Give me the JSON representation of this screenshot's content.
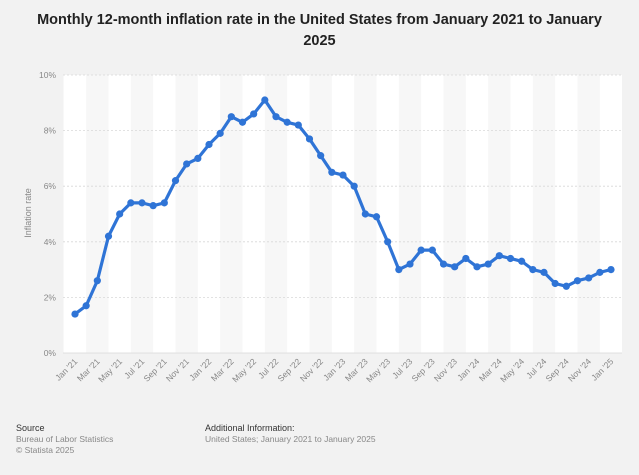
{
  "title": "Monthly 12-month inflation rate in the United States from January 2021 to January 2025",
  "chart_data": {
    "type": "line",
    "title": "Monthly 12-month inflation rate in the United States from January 2021 to January 2025",
    "xlabel": "",
    "ylabel": "Inflation rate",
    "ylim": [
      0,
      10
    ],
    "yticks": [
      "0%",
      "2%",
      "4%",
      "6%",
      "8%",
      "10%"
    ],
    "ytick_values": [
      0,
      2,
      4,
      6,
      8,
      10
    ],
    "x": [
      "Jan '21",
      "Feb '21",
      "Mar '21",
      "Apr '21",
      "May '21",
      "Jun '21",
      "Jul '21",
      "Aug '21",
      "Sep '21",
      "Oct '21",
      "Nov '21",
      "Dec '21",
      "Jan '22",
      "Feb '22",
      "Mar '22",
      "Apr '22",
      "May '22",
      "Jun '22",
      "Jul '22",
      "Aug '22",
      "Sep '22",
      "Oct '22",
      "Nov '22",
      "Dec '22",
      "Jan '23",
      "Feb '23",
      "Mar '23",
      "Apr '23",
      "May '23",
      "Jun '23",
      "Jul '23",
      "Aug '23",
      "Sep '23",
      "Oct '23",
      "Nov '23",
      "Dec '23",
      "Jan '24",
      "Feb '24",
      "Mar '24",
      "Apr '24",
      "May '24",
      "Jun '24",
      "Jul '24",
      "Aug '24",
      "Sep '24",
      "Oct '24",
      "Nov '24",
      "Dec '24",
      "Jan '25"
    ],
    "xtick_labels": [
      "Jan '21",
      "Mar '21",
      "May '21",
      "Jul '21",
      "Sep '21",
      "Nov '21",
      "Jan '22",
      "Mar '22",
      "May '22",
      "Jul '22",
      "Sep '22",
      "Nov '22",
      "Jan '23",
      "Mar '23",
      "May '23",
      "Jul '23",
      "Sep '23",
      "Nov '23",
      "Jan '24",
      "Mar '24",
      "May '24",
      "Jul '24",
      "Sep '24",
      "Nov '24",
      "Jan '25"
    ],
    "values": [
      1.4,
      1.7,
      2.6,
      4.2,
      5.0,
      5.4,
      5.4,
      5.3,
      5.4,
      6.2,
      6.8,
      7.0,
      7.5,
      7.9,
      8.5,
      8.3,
      8.6,
      9.1,
      8.5,
      8.3,
      8.2,
      7.7,
      7.1,
      6.5,
      6.4,
      6.0,
      5.0,
      4.9,
      4.0,
      3.0,
      3.2,
      3.7,
      3.7,
      3.2,
      3.1,
      3.4,
      3.1,
      3.2,
      3.5,
      3.4,
      3.3,
      3.0,
      2.9,
      2.5,
      2.4,
      2.6,
      2.7,
      2.9,
      3.0
    ],
    "grid": true,
    "legend": "none",
    "line_color": "#2f74d6"
  },
  "footer": {
    "source_heading": "Source",
    "source_line1": "Bureau of Labor Statistics",
    "source_line2": "© Statista 2025",
    "info_heading": "Additional Information:",
    "info_line1": "United States; January 2021 to January 2025"
  }
}
